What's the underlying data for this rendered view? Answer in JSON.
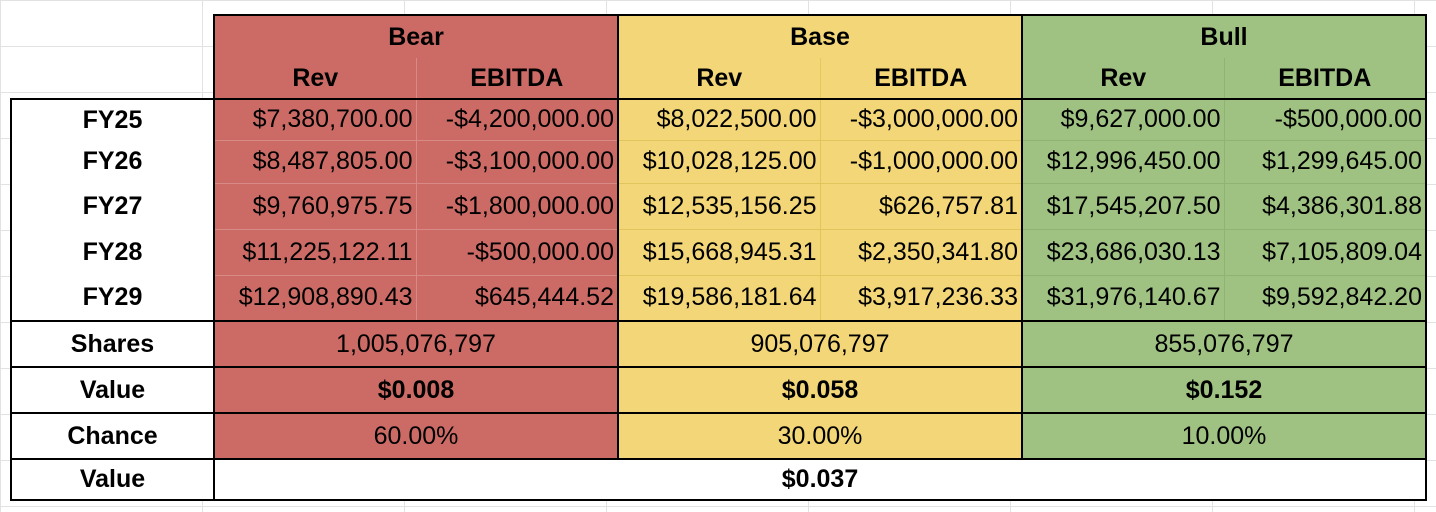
{
  "scenarios": {
    "bear": {
      "name": "Bear",
      "color": "#cc6b66"
    },
    "base": {
      "name": "Base",
      "color": "#f2d677"
    },
    "bull": {
      "name": "Bull",
      "color": "#9fc283"
    }
  },
  "subheaders": {
    "rev": "Rev",
    "ebitda": "EBITDA"
  },
  "years": [
    {
      "label": "FY25",
      "bear_rev": "$7,380,700.00",
      "bear_ebitda": "-$4,200,000.00",
      "base_rev": "$8,022,500.00",
      "base_ebitda": "-$3,000,000.00",
      "bull_rev": "$9,627,000.00",
      "bull_ebitda": "-$500,000.00"
    },
    {
      "label": "FY26",
      "bear_rev": "$8,487,805.00",
      "bear_ebitda": "-$3,100,000.00",
      "base_rev": "$10,028,125.00",
      "base_ebitda": "-$1,000,000.00",
      "bull_rev": "$12,996,450.00",
      "bull_ebitda": "$1,299,645.00"
    },
    {
      "label": "FY27",
      "bear_rev": "$9,760,975.75",
      "bear_ebitda": "-$1,800,000.00",
      "base_rev": "$12,535,156.25",
      "base_ebitda": "$626,757.81",
      "bull_rev": "$17,545,207.50",
      "bull_ebitda": "$4,386,301.88"
    },
    {
      "label": "FY28",
      "bear_rev": "$11,225,122.11",
      "bear_ebitda": "-$500,000.00",
      "base_rev": "$15,668,945.31",
      "base_ebitda": "$2,350,341.80",
      "bull_rev": "$23,686,030.13",
      "bull_ebitda": "$7,105,809.04"
    },
    {
      "label": "FY29",
      "bear_rev": "$12,908,890.43",
      "bear_ebitda": "$645,444.52",
      "base_rev": "$19,586,181.64",
      "base_ebitda": "$3,917,236.33",
      "bull_rev": "$31,976,140.67",
      "bull_ebitda": "$9,592,842.20"
    }
  ],
  "shares": {
    "label": "Shares",
    "bear": "1,005,076,797",
    "base": "905,076,797",
    "bull": "855,076,797"
  },
  "value": {
    "label": "Value",
    "bear": "$0.008",
    "base": "$0.058",
    "bull": "$0.152"
  },
  "chance": {
    "label": "Chance",
    "bear": "60.00%",
    "base": "30.00%",
    "bull": "10.00%"
  },
  "expected_value": {
    "label": "Value",
    "value": "$0.037"
  }
}
